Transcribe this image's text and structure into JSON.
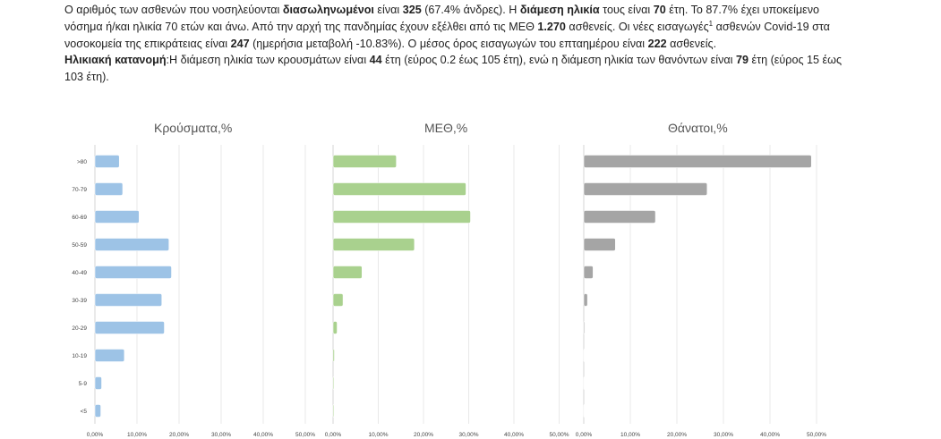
{
  "paragraphs": [
    [
      {
        "t": "Ο αριθμός των ασθενών που νοσηλεύονται "
      },
      {
        "t": "διασωληνωμένοι",
        "b": true
      },
      {
        "t": " είναι "
      },
      {
        "t": "325",
        "b": true
      },
      {
        "t": " (67.4% άνδρες).  Η "
      },
      {
        "t": "διάμεση ηλικία",
        "b": true
      },
      {
        "t": " τους είναι "
      },
      {
        "t": "70",
        "b": true
      },
      {
        "t": " έτη.  Το 87.7% έχει υποκείμενο νόσημα ή/και ηλικία 70 ετών και άνω. Από την αρχή της πανδημίας έχουν εξέλθει από τις ΜΕΘ "
      },
      {
        "t": "1.270",
        "b": true
      },
      {
        "t": " ασθενείς.  Οι νέες εισαγωγές"
      },
      {
        "t": "1",
        "sup": true
      },
      {
        "t": " ασθενών Covid-19 στα νοσοκομεία της επικράτειας είναι "
      },
      {
        "t": "247",
        "b": true
      },
      {
        "t": " (ημερήσια μεταβολή -10.83%). Ο μέσος όρος εισαγωγών του επταημέρου είναι "
      },
      {
        "t": "222",
        "b": true
      },
      {
        "t": " ασθενείς."
      }
    ],
    [
      {
        "t": "Ηλικιακή κατανομή",
        "b": true
      },
      {
        "t": ":Η διάμεση ηλικία των κρουσμάτων είναι "
      },
      {
        "t": "44",
        "b": true
      },
      {
        "t": " έτη (εύρος 0.2 έως 105 έτη), ενώ η διάμεση ηλικία των θανόντων είναι "
      },
      {
        "t": "79",
        "b": true
      },
      {
        "t": " έτη (εύρος 15 έως 103 έτη)."
      }
    ]
  ],
  "chart_data": [
    {
      "type": "bar",
      "orientation": "horizontal",
      "title": "Κρούσματα,%",
      "categories": [
        ">80",
        "70-79",
        "60-69",
        "50-59",
        "40-49",
        "30-39",
        "20-29",
        "10-19",
        "5-9",
        "<5"
      ],
      "values": [
        5.8,
        6.6,
        10.5,
        17.6,
        18.2,
        15.9,
        16.5,
        7.0,
        1.6,
        1.4
      ],
      "xlim": [
        0,
        50
      ],
      "xticks": [
        "0,00%",
        "10,00%",
        "20,00%",
        "30,00%",
        "40,00%",
        "50,00%"
      ],
      "color": "#9dc3e6",
      "grid": true
    },
    {
      "type": "bar",
      "orientation": "horizontal",
      "title": "ΜΕΘ,%",
      "categories": [
        ">80",
        "70-79",
        "60-69",
        "50-59",
        "40-49",
        "30-39",
        "20-29",
        "10-19",
        "5-9",
        "<5"
      ],
      "values": [
        14.0,
        29.4,
        30.4,
        18.0,
        6.4,
        2.2,
        0.9,
        0.3,
        0.2,
        0.2
      ],
      "xlim": [
        0,
        50
      ],
      "xticks": [
        "0,00%",
        "10,00%",
        "20,00%",
        "30,00%",
        "40,00%",
        "50,00%"
      ],
      "color": "#a9d18e",
      "grid": true
    },
    {
      "type": "bar",
      "orientation": "horizontal",
      "title": "Θάνατοι,%",
      "categories": [
        ">80",
        "70-79",
        "60-69",
        "50-59",
        "40-49",
        "30-39",
        "20-29",
        "10-19",
        "5-9",
        "<5"
      ],
      "values": [
        48.9,
        26.5,
        15.4,
        6.8,
        2.0,
        0.8,
        0.2,
        0.1,
        0.0,
        0.0
      ],
      "xlim": [
        0,
        50
      ],
      "xticks": [
        "0,00%",
        "10,00%",
        "20,00%",
        "30,00%",
        "40,00%",
        "50,00%"
      ],
      "color": "#a5a5a5",
      "grid": true
    }
  ]
}
